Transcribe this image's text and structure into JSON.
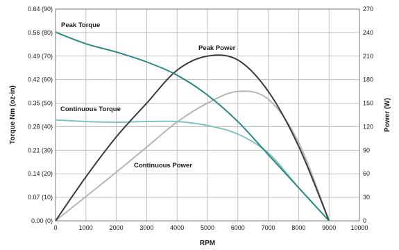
{
  "chart_data": {
    "type": "line",
    "x": [
      0,
      1000,
      2000,
      3000,
      4000,
      5000,
      6000,
      7000,
      8000,
      9000
    ],
    "xlabel": "RPM",
    "ylabel_left": "Torque Nm (oz-in)",
    "ylabel_right": "Power (W)",
    "xlim": [
      0,
      10000
    ],
    "ylim_left": [
      0,
      0.64
    ],
    "ylim_right": [
      0,
      270
    ],
    "grid": true,
    "x_ticks": [
      "0",
      "1000",
      "2000",
      "3000",
      "4000",
      "5000",
      "6000",
      "7000",
      "8000",
      "9000",
      "10000"
    ],
    "y_ticks_left": [
      "0.00 (0)",
      "0.07 (10)",
      "0.14 (20)",
      "0.21 (30)",
      "0.28 (40)",
      "0.35 (50)",
      "0.42 (60)",
      "0.49 (70)",
      "0.56 (80)",
      "0.64 (90)"
    ],
    "y_ticks_right": [
      "0",
      "30",
      "60",
      "90",
      "120",
      "150",
      "180",
      "210",
      "240",
      "270"
    ],
    "series": [
      {
        "name": "Peak Torque",
        "axis": "left",
        "color": "#2a8a80",
        "values": [
          0.57,
          0.535,
          0.51,
          0.48,
          0.44,
          0.38,
          0.3,
          0.2,
          0.1,
          0.0
        ]
      },
      {
        "name": "Continuous Torque",
        "axis": "left",
        "color": "#7fc4bd",
        "values": [
          0.305,
          0.3,
          0.298,
          0.3,
          0.3,
          0.288,
          0.262,
          0.205,
          0.1,
          0.0
        ]
      },
      {
        "name": "Peak Power",
        "axis": "right",
        "color": "#3a3a3a",
        "values": [
          0,
          56,
          107,
          150,
          192,
          210,
          205,
          165,
          95,
          0
        ]
      },
      {
        "name": "Continuous Power",
        "axis": "right",
        "color": "#b5b5b5",
        "values": [
          0,
          31,
          62,
          94,
          126,
          150,
          165,
          155,
          100,
          0
        ]
      }
    ],
    "annotations": [
      {
        "text": "Peak Torque",
        "series": "Peak Torque"
      },
      {
        "text": "Peak Power",
        "series": "Peak Power"
      },
      {
        "text": "Continuous Torque",
        "series": "Continuous Torque"
      },
      {
        "text": "Continuous Power",
        "series": "Continuous Power"
      }
    ]
  }
}
